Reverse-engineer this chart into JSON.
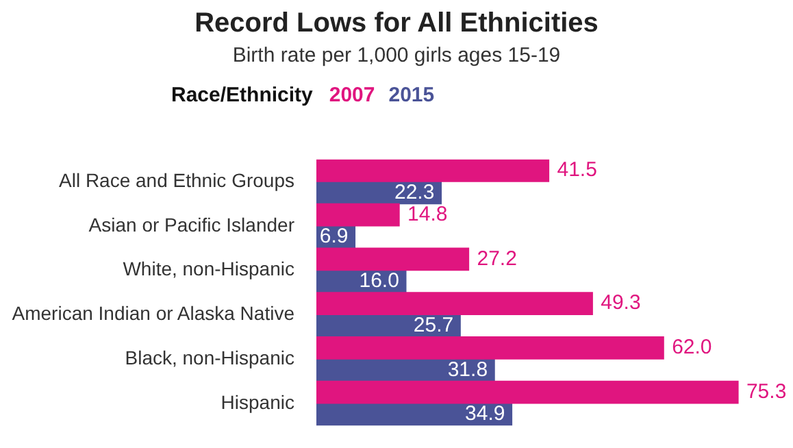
{
  "chart_data": {
    "type": "bar",
    "orientation": "horizontal",
    "title": "Record Lows for All Ethnicities",
    "subtitle": "Birth rate per 1,000 girls ages 15-19",
    "legend_title": "Race/Ethnicity",
    "legend": "top left",
    "categories": [
      "All Race and Ethnic Groups",
      "Asian or Pacific Islander",
      "White, non-Hispanic",
      "American Indian or Alaska Native",
      "Black, non-Hispanic",
      "Hispanic"
    ],
    "series": [
      {
        "name": "2007",
        "color": "#e0157f",
        "values": [
          41.5,
          14.8,
          27.2,
          49.3,
          62.0,
          75.3
        ],
        "value_labels": [
          "41.5",
          "14.8",
          "27.2",
          "49.3",
          "62.0",
          "75.3"
        ]
      },
      {
        "name": "2015",
        "color": "#4a5397",
        "values": [
          22.3,
          6.9,
          16.0,
          25.7,
          31.8,
          34.9
        ],
        "value_labels": [
          "22.3",
          "6.9",
          "16.0",
          "25.7",
          "31.8",
          "34.9"
        ]
      }
    ]
  }
}
